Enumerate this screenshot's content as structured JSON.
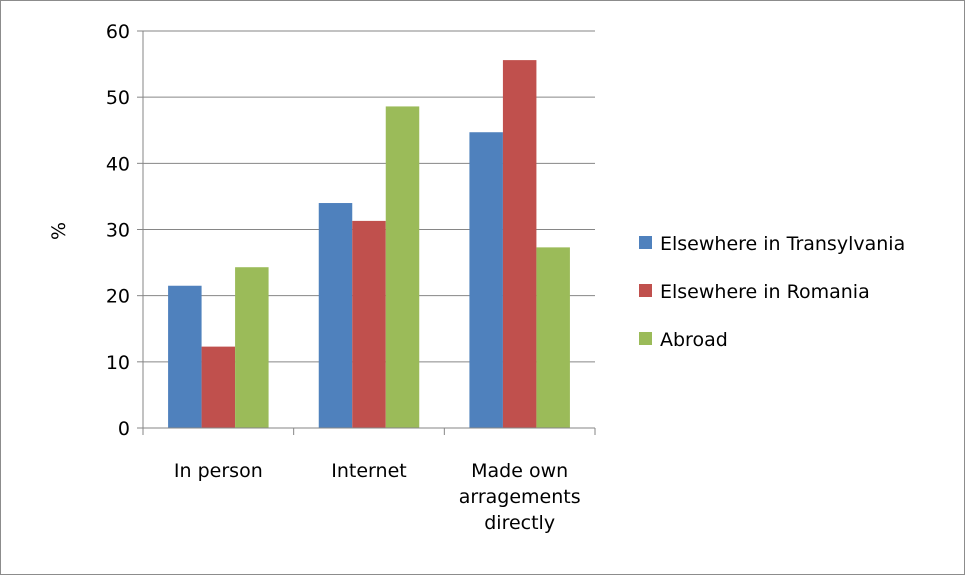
{
  "chart_data": {
    "type": "bar",
    "categories": [
      [
        "In person"
      ],
      [
        "Internet"
      ],
      [
        "Made own",
        "arragements",
        "directly"
      ]
    ],
    "series": [
      {
        "name": "Elsewhere in Transylvania",
        "color": "#4f81bd",
        "values": [
          21.5,
          34,
          44.7
        ]
      },
      {
        "name": "Elsewhere in Romania",
        "color": "#c0504d",
        "values": [
          12.3,
          31.3,
          55.6
        ]
      },
      {
        "name": "Abroad",
        "color": "#9bbb59",
        "values": [
          24.3,
          48.6,
          27.3
        ]
      }
    ],
    "title": "",
    "xlabel": "",
    "ylabel": "%",
    "ylim": [
      0,
      60
    ],
    "yticks": [
      "0",
      "10",
      "20",
      "30",
      "40",
      "50",
      "60"
    ],
    "grid": true,
    "legend_position": "right"
  }
}
